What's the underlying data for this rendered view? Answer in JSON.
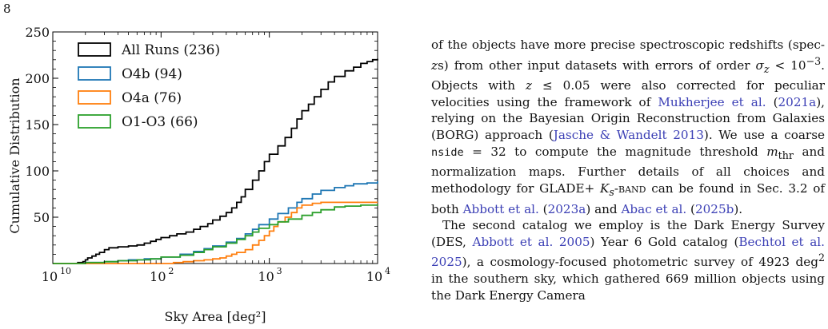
{
  "page": {
    "number": "8"
  },
  "chart_data": {
    "type": "line",
    "subtype": "step",
    "xlabel": "Sky Area [deg²]",
    "ylabel": "Cumulative Distribution",
    "xscale": "log",
    "xlim": [
      10,
      10000
    ],
    "ylim": [
      0,
      250
    ],
    "x_ticks": [
      10,
      100,
      1000,
      10000
    ],
    "x_tick_labels": [
      "10",
      "2",
      "3",
      "4"
    ],
    "x_tick_base": "10",
    "y_ticks": [
      50,
      100,
      150,
      200,
      250
    ],
    "y_tick_labels": [
      "50",
      "100",
      "150",
      "200",
      "250"
    ],
    "grid": false,
    "legend_position": "top-left",
    "series": [
      {
        "name": "All Runs (236)",
        "color": "#000000",
        "points": [
          [
            10,
            0
          ],
          [
            17,
            1
          ],
          [
            19,
            2
          ],
          [
            20,
            4
          ],
          [
            21,
            6
          ],
          [
            23,
            8
          ],
          [
            25,
            10
          ],
          [
            27,
            12
          ],
          [
            30,
            15
          ],
          [
            33,
            17
          ],
          [
            40,
            18
          ],
          [
            50,
            19
          ],
          [
            60,
            20
          ],
          [
            70,
            22
          ],
          [
            80,
            24
          ],
          [
            90,
            26
          ],
          [
            100,
            28
          ],
          [
            120,
            30
          ],
          [
            140,
            32
          ],
          [
            170,
            34
          ],
          [
            200,
            37
          ],
          [
            230,
            40
          ],
          [
            270,
            43
          ],
          [
            300,
            47
          ],
          [
            350,
            51
          ],
          [
            400,
            55
          ],
          [
            450,
            60
          ],
          [
            500,
            66
          ],
          [
            550,
            72
          ],
          [
            600,
            80
          ],
          [
            700,
            90
          ],
          [
            800,
            100
          ],
          [
            900,
            110
          ],
          [
            1000,
            118
          ],
          [
            1200,
            127
          ],
          [
            1400,
            136
          ],
          [
            1600,
            146
          ],
          [
            1800,
            156
          ],
          [
            2000,
            165
          ],
          [
            2300,
            172
          ],
          [
            2600,
            180
          ],
          [
            3000,
            188
          ],
          [
            3500,
            196
          ],
          [
            4000,
            202
          ],
          [
            5000,
            208
          ],
          [
            6000,
            212
          ],
          [
            7000,
            216
          ],
          [
            8000,
            218
          ],
          [
            9000,
            220
          ],
          [
            10000,
            221
          ]
        ]
      },
      {
        "name": "O4b (94)",
        "color": "#1f77b4",
        "points": [
          [
            10,
            0
          ],
          [
            20,
            1
          ],
          [
            30,
            2
          ],
          [
            40,
            3
          ],
          [
            50,
            4
          ],
          [
            70,
            5
          ],
          [
            100,
            7
          ],
          [
            150,
            10
          ],
          [
            200,
            13
          ],
          [
            250,
            16
          ],
          [
            300,
            19
          ],
          [
            400,
            23
          ],
          [
            500,
            27
          ],
          [
            600,
            32
          ],
          [
            700,
            37
          ],
          [
            800,
            42
          ],
          [
            1000,
            48
          ],
          [
            1200,
            54
          ],
          [
            1500,
            60
          ],
          [
            1800,
            66
          ],
          [
            2000,
            70
          ],
          [
            2500,
            75
          ],
          [
            3000,
            79
          ],
          [
            4000,
            82
          ],
          [
            5000,
            84
          ],
          [
            6000,
            86
          ],
          [
            8000,
            87
          ],
          [
            10000,
            89
          ]
        ]
      },
      {
        "name": "O4a (76)",
        "color": "#ff7f0e",
        "points": [
          [
            10,
            0
          ],
          [
            100,
            0
          ],
          [
            130,
            1
          ],
          [
            160,
            2
          ],
          [
            200,
            3
          ],
          [
            250,
            4
          ],
          [
            300,
            5
          ],
          [
            350,
            6
          ],
          [
            400,
            8
          ],
          [
            450,
            10
          ],
          [
            500,
            12
          ],
          [
            600,
            15
          ],
          [
            700,
            20
          ],
          [
            800,
            25
          ],
          [
            900,
            30
          ],
          [
            1000,
            35
          ],
          [
            1100,
            40
          ],
          [
            1200,
            45
          ],
          [
            1400,
            50
          ],
          [
            1600,
            55
          ],
          [
            1800,
            60
          ],
          [
            2000,
            63
          ],
          [
            2500,
            65
          ],
          [
            3000,
            66
          ],
          [
            4000,
            66
          ],
          [
            10000,
            66
          ]
        ]
      },
      {
        "name": "O1-O3 (66)",
        "color": "#2ca02c",
        "points": [
          [
            10,
            0
          ],
          [
            20,
            1
          ],
          [
            30,
            2
          ],
          [
            40,
            3
          ],
          [
            60,
            4
          ],
          [
            80,
            5
          ],
          [
            100,
            7
          ],
          [
            150,
            9
          ],
          [
            200,
            12
          ],
          [
            250,
            15
          ],
          [
            300,
            18
          ],
          [
            400,
            22
          ],
          [
            500,
            26
          ],
          [
            600,
            30
          ],
          [
            700,
            34
          ],
          [
            800,
            38
          ],
          [
            1000,
            42
          ],
          [
            1200,
            45
          ],
          [
            1500,
            48
          ],
          [
            2000,
            52
          ],
          [
            2500,
            55
          ],
          [
            3000,
            58
          ],
          [
            4000,
            61
          ],
          [
            5000,
            62
          ],
          [
            7000,
            63
          ],
          [
            10000,
            64
          ]
        ]
      }
    ]
  },
  "text": {
    "p1_a": "of the objects have more precise spectroscopic redshifts (spec-",
    "p1_b": "s) from other input datasets with errors of order ",
    "p1_c": ". Objects with ",
    "p1_d": " were also corrected for peculiar velocities using the framework of ",
    "cite_mukherjee": "Mukherjee et al.",
    "cite_mukherjee_year": "2021a",
    "p1_e": "), relying on the Bayesian Origin Reconstruction from Galaxies (BORG) approach (",
    "cite_jasche": "Jasche & Wandelt 2013",
    "p1_f": "). We use a coarse ",
    "nside": "nside",
    "p1_g": " = 32 to compute the magnitude threshold ",
    "p1_h": " and normalization maps. Further details of all choices and methodology for GLADE+ ",
    "ks_band": "-band",
    "p1_i": " can be found in Sec. 3.2 of both ",
    "cite_abbott": "Abbott et al.",
    "cite_abbott_year": "2023a",
    "p1_j": ") and ",
    "cite_abac": "Abac et al.",
    "cite_abac_year": "2025b",
    "p1_k": ").",
    "p2_a": "The second catalog we employ is the Dark Energy Survey (DES, ",
    "cite_des": "Abbott et al. 2005",
    "p2_b": ") Year 6 Gold catalog (",
    "cite_bechtol": "Bechtol et al. 2025",
    "p2_c": "), a cosmology-focused photometric survey of 4923 deg",
    "p2_d": " in the southern sky, which gathered 669 million objects using the Dark Energy Camera"
  }
}
